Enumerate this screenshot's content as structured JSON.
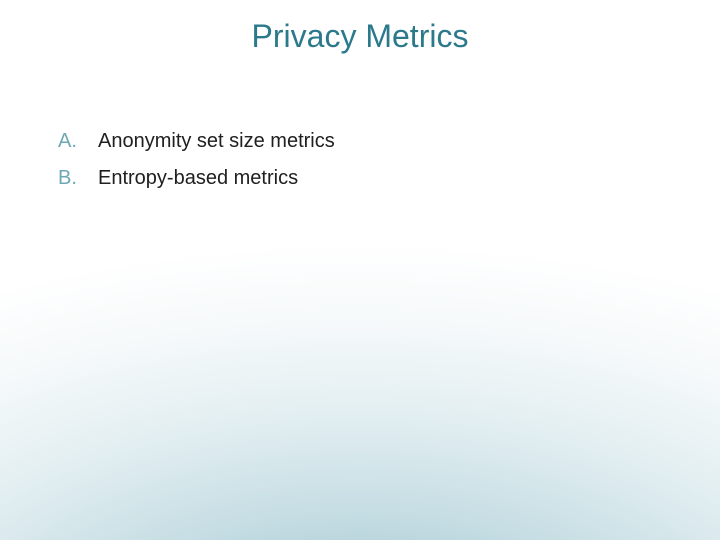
{
  "slide": {
    "title": "Privacy Metrics",
    "title_color": "#2b7a8c",
    "title_fontsize": 32,
    "marker_color": "#6fa8b5",
    "marker_fontsize": 20,
    "item_color": "#202020",
    "item_fontsize": 20,
    "items": [
      {
        "marker": "A.",
        "text": "Anonymity set size metrics"
      },
      {
        "marker": "B.",
        "text": "Entropy-based metrics"
      }
    ],
    "background": {
      "gradient_inner": "#8fb8c4",
      "gradient_outer": "#ffffff"
    }
  }
}
